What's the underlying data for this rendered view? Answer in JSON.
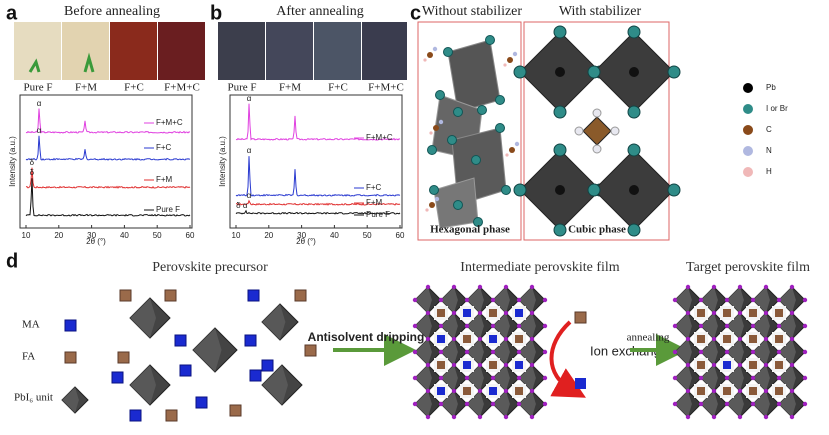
{
  "panel_a": {
    "label": "a",
    "title": "Before annealing",
    "samples": [
      "Pure F",
      "F+M",
      "F+C",
      "F+M+C"
    ],
    "y_label": "Intensity (a.u.)",
    "x_label": "2θ (°)",
    "x_ticks": [
      10,
      20,
      30,
      40,
      50,
      60
    ],
    "traces": [
      "F+M+C",
      "F+C",
      "F+M",
      "Pure F"
    ],
    "peaks": [
      "α",
      "α",
      "δ",
      "δ"
    ]
  },
  "panel_b": {
    "label": "b",
    "title": "After annealing",
    "samples": [
      "Pure F",
      "F+M",
      "F+C",
      "F+M+C"
    ],
    "y_label": "Intensity (a.u.)",
    "x_label": "2θ (°)",
    "x_ticks": [
      10,
      20,
      30,
      40,
      50,
      60
    ],
    "traces": [
      "F+M+C",
      "F+C",
      "F+M",
      "Pure F"
    ],
    "peaks": [
      "α",
      "α",
      "α",
      "δ α"
    ]
  },
  "panel_c": {
    "label": "c",
    "left_title": "Without stabilizer",
    "right_title": "With stabilizer",
    "left_caption": "Hexagonal phase",
    "right_caption": "Cubic phase",
    "legend": [
      "Pb",
      "I or Br",
      "C",
      "N",
      "H"
    ]
  },
  "panel_d": {
    "label": "d",
    "stage_titles": [
      "Perovskite precursor",
      "Intermediate perovskite film",
      "Target perovskite film"
    ],
    "species": [
      "MA",
      "FA",
      "PbI₆ unit"
    ],
    "arrow_1": "Antisolvent dripping",
    "exchange": "Ion exchange",
    "arrow_2": "annealing"
  }
}
